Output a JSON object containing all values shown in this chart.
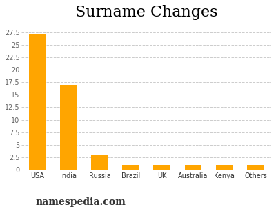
{
  "title": "Surname Changes",
  "categories": [
    "USA",
    "India",
    "Russia",
    "Brazil",
    "UK",
    "Australia",
    "Kenya",
    "Others"
  ],
  "values": [
    27,
    17,
    3,
    1,
    1,
    1,
    1,
    1
  ],
  "bar_color": "#FFA500",
  "background_color": "#ffffff",
  "ytick_vals": [
    0,
    2.5,
    5,
    7.5,
    10,
    12.5,
    15,
    17.5,
    20,
    22.5,
    25,
    27.5
  ],
  "ytick_labels": [
    "0",
    "2.5",
    "5",
    "7.5",
    "10",
    "12.5",
    "15",
    "17.5",
    "20",
    "22.5",
    "25",
    "27.5"
  ],
  "ylim": [
    0,
    29.5
  ],
  "grid_color": "#cccccc",
  "watermark": "namespedia.com",
  "title_fontsize": 16,
  "tick_fontsize": 7,
  "watermark_fontsize": 10
}
